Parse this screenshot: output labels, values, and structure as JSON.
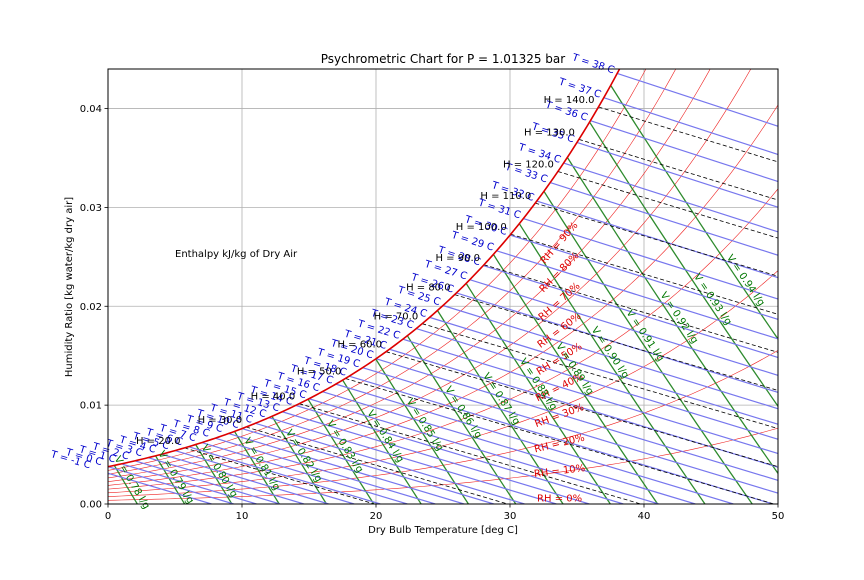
{
  "chart_data": {
    "type": "line",
    "title": "Psychrometric Chart for P = 1.01325 bar",
    "xlabel": "Dry Bulb Temperature [deg C]",
    "ylabel": "Humidity Ratio [kg water/kg dry air]",
    "annotation": "Enthalpy kJ/kg of Dry Air",
    "xlim": [
      0,
      50
    ],
    "ylim": [
      0,
      0.044
    ],
    "grid": true,
    "x_ticks": [
      0,
      10,
      20,
      30,
      40,
      50
    ],
    "y_ticks": [
      0.0,
      0.01,
      0.02,
      0.03,
      0.04
    ],
    "x_tick_labels": [
      "0",
      "10",
      "20",
      "30",
      "40",
      "50"
    ],
    "y_tick_labels": [
      "0.00",
      "0.01",
      "0.02",
      "0.03",
      "0.04"
    ],
    "pressure_bar": 1.01325,
    "colors": {
      "saturation": "#dd0000",
      "rh": "#ee2222",
      "wet_bulb": "#7777ee",
      "volume": "#2e8b2e",
      "enthalpy": "#000000",
      "rh_label": "#dd0000",
      "wet_bulb_label": "#0000cc",
      "volume_label": "#007700",
      "enthalpy_label": "#000000"
    },
    "relative_humidity_pct": [
      0,
      10,
      20,
      30,
      40,
      50,
      60,
      70,
      80,
      90
    ],
    "rh_labels": [
      "RH = 0%",
      "RH = 10%",
      "RH = 20%",
      "RH = 30%",
      "RH = 40%",
      "RH = 50%",
      "RH = 60%",
      "RH = 70%",
      "RH = 80%",
      "RH = 90%"
    ],
    "wet_bulb_C": [
      -1,
      0,
      1,
      2,
      3,
      4,
      5,
      6,
      7,
      8,
      9,
      10,
      11,
      12,
      13,
      14,
      15,
      16,
      17,
      18,
      19,
      20,
      21,
      22,
      23,
      24,
      25,
      26,
      27,
      28,
      29,
      30,
      31,
      32,
      33,
      34,
      35,
      36,
      37,
      38
    ],
    "wet_bulb_labels": [
      "T = -1 C",
      "T = 0 C",
      "T = 1 C",
      "T = 2 C",
      "T = 3 C",
      "T = 4 C",
      "T = 5 C",
      "T = 6 C",
      "T = 7 C",
      "T = 8 C",
      "T = 9 C",
      "T = 10 C",
      "T = 11 C",
      "T = 12 C",
      "T = 13 C",
      "T = 14 C",
      "T = 15 C",
      "T = 16 C",
      "T = 17 C",
      "T = 18 C",
      "T = 19 C",
      "T = 20 C",
      "T = 21 C",
      "T = 22 C",
      "T = 23 C",
      "T = 24 C",
      "T = 25 C",
      "T = 26 C",
      "T = 27 C",
      "T = 28 C",
      "T = 29 C",
      "T = 30 C",
      "T = 31 C",
      "T = 32 C",
      "T = 33 C",
      "T = 34 C",
      "T = 35 C",
      "T = 36 C",
      "T = 37 C",
      "T = 38 C"
    ],
    "enthalpy_kJkg": [
      20,
      30,
      40,
      50,
      60,
      70,
      80,
      90,
      100,
      110,
      120,
      130,
      140
    ],
    "enthalpy_labels": [
      "H = 20.0",
      "H = 30.0",
      "H = 40.0",
      "H = 50.0",
      "H = 60.0",
      "H = 70.0",
      "H = 80.0",
      "H = 90.0",
      "H = 100.0",
      "H = 110.0",
      "H = 120.0",
      "H = 130.0",
      "H = 140.0"
    ],
    "specific_volume_lg": [
      0.78,
      0.79,
      0.8,
      0.81,
      0.82,
      0.83,
      0.84,
      0.85,
      0.86,
      0.87,
      0.88,
      0.89,
      0.9,
      0.91,
      0.92,
      0.93,
      0.94
    ],
    "volume_labels": [
      "V = 0.78 l/g",
      "V = 0.79 l/g",
      "V = 0.80 l/g",
      "V = 0.81 l/g",
      "V = 0.82 l/g",
      "V = 0.83 l/g",
      "V = 0.84 l/g",
      "V = 0.85 l/g",
      "V = 0.86 l/g",
      "V = 0.87 l/g",
      "V = 0.88 l/g",
      "V = 0.89 l/g",
      "V = 0.90 l/g",
      "V = 0.91 l/g",
      "V = 0.92 l/g",
      "V = 0.93 l/g",
      "V = 0.94 l/g"
    ]
  }
}
